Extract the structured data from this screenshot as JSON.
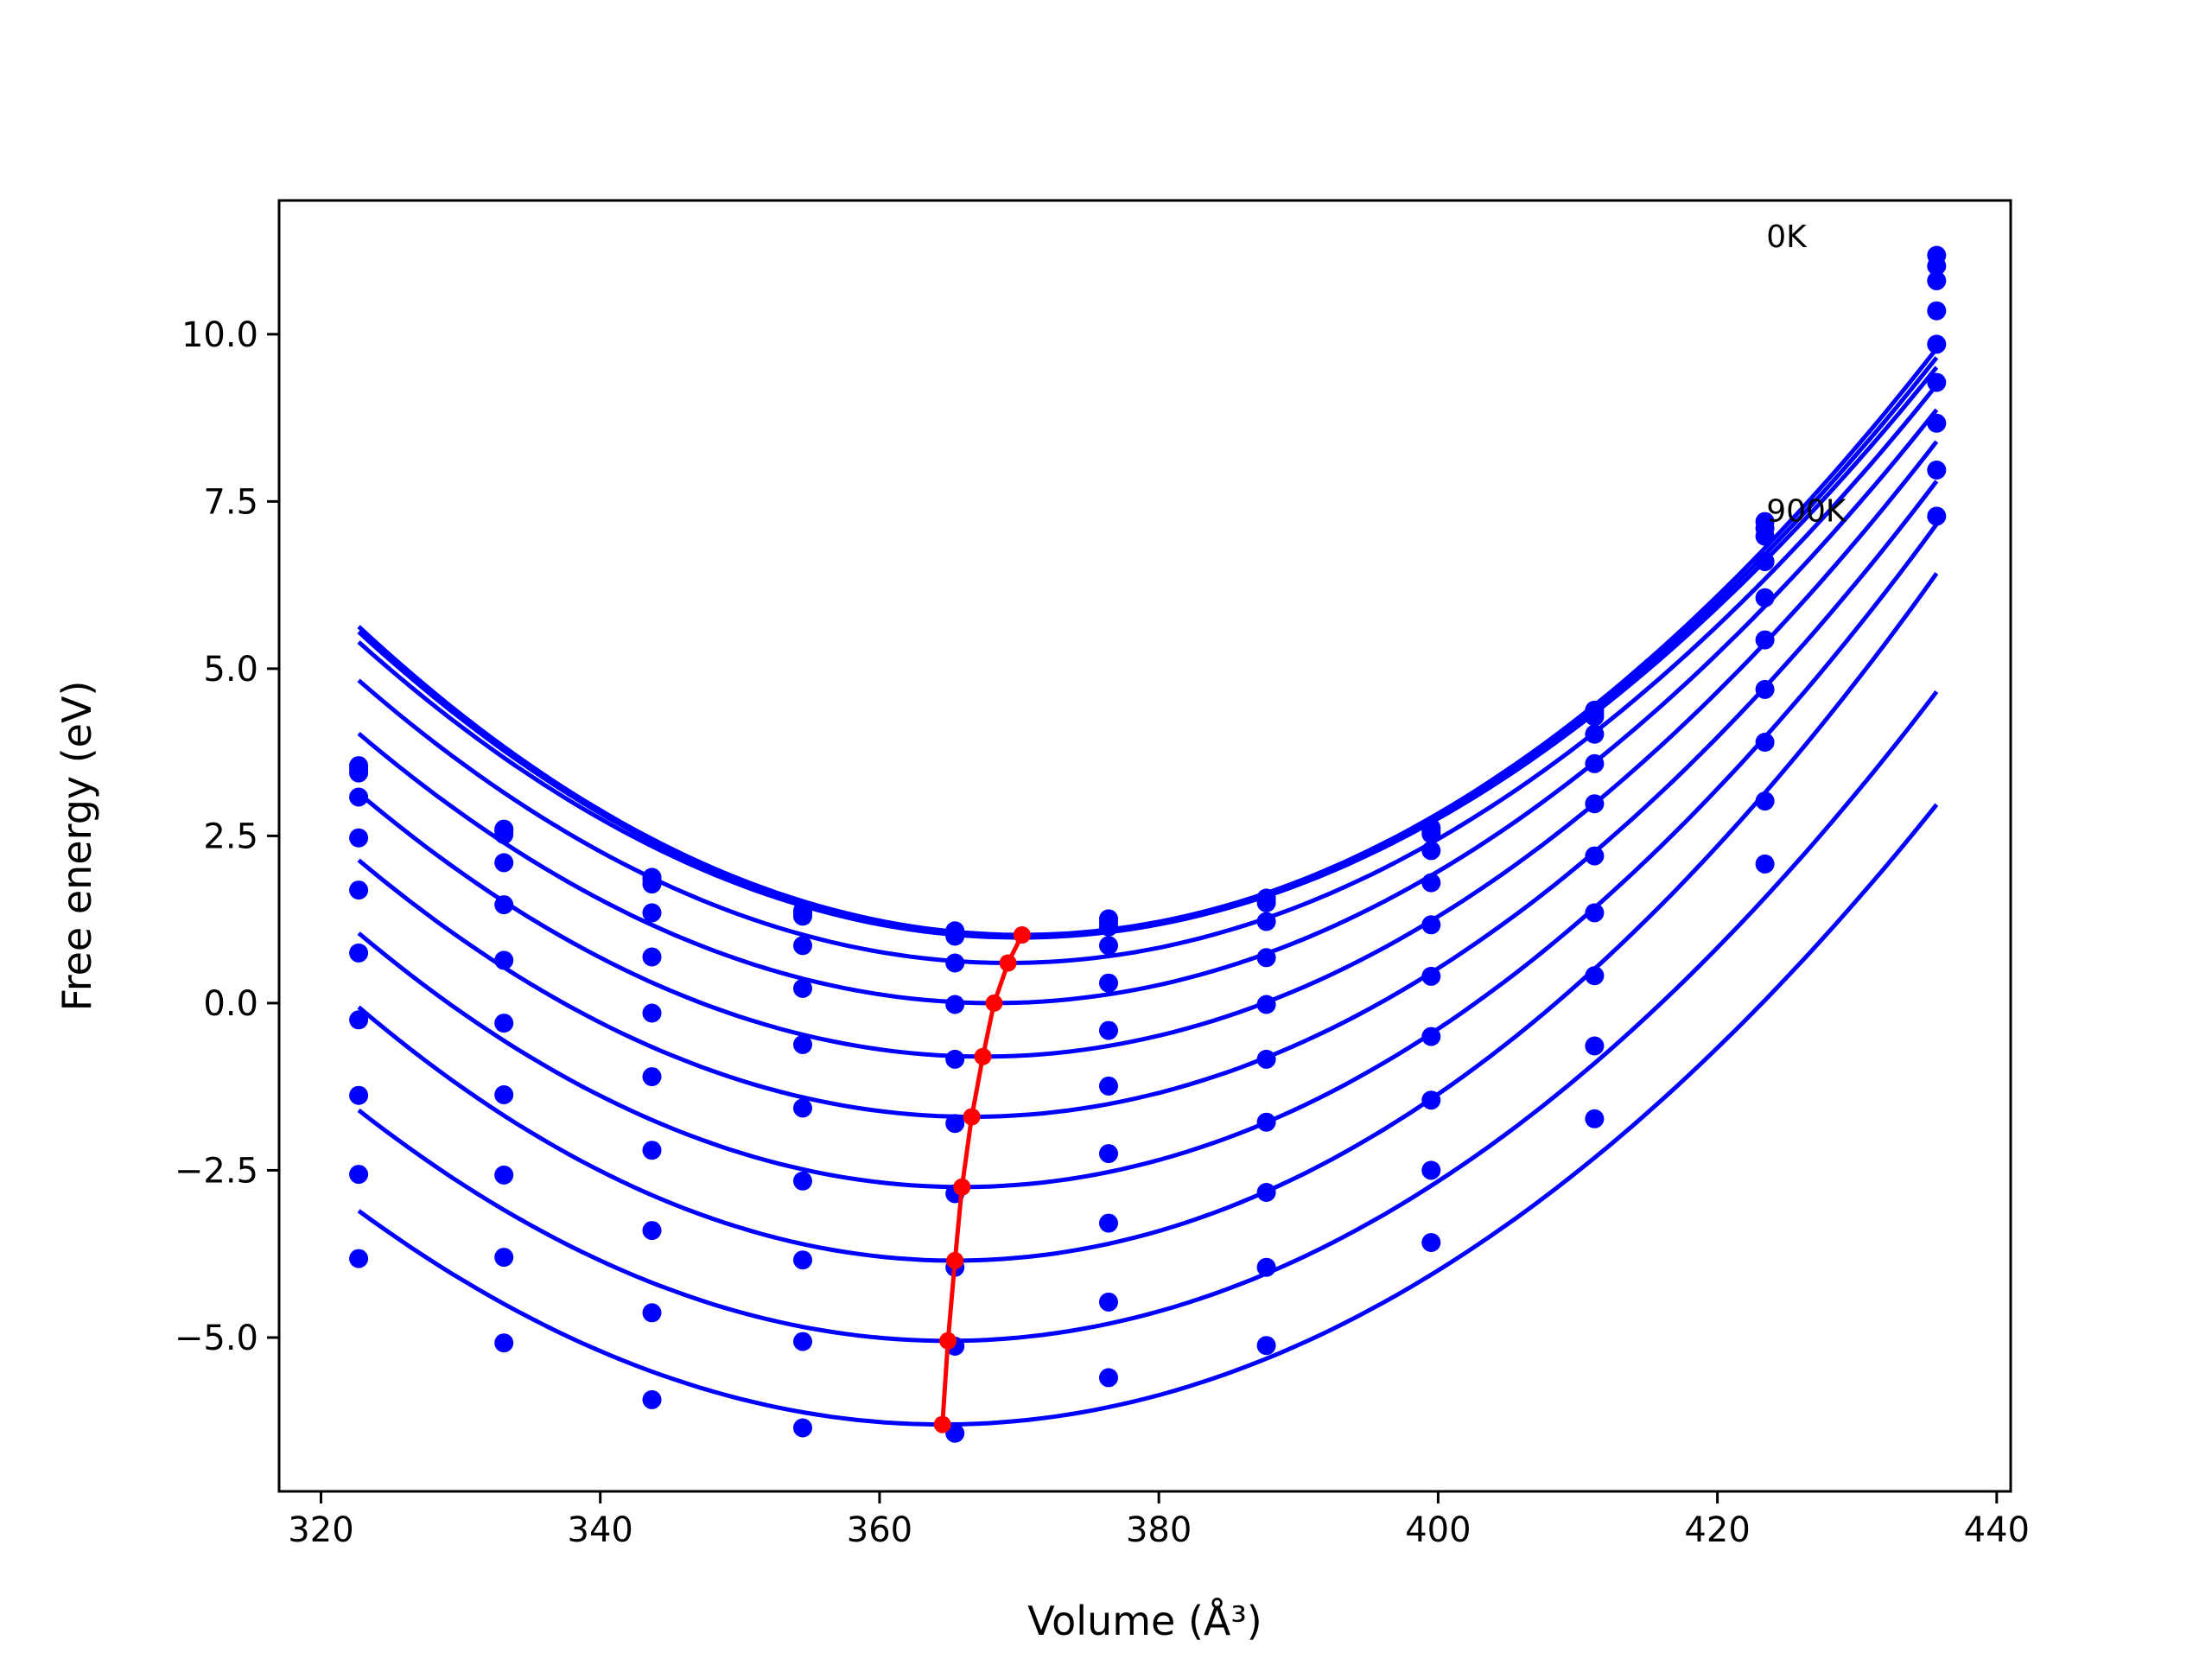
{
  "chart_data": {
    "type": "line",
    "xlabel": "Volume (Å³)",
    "ylabel": "Free energy (eV)",
    "xlim": [
      317,
      441
    ],
    "ylim": [
      -7.3,
      12.0
    ],
    "xticks": [
      320,
      340,
      360,
      380,
      400,
      420,
      440
    ],
    "yticks": [
      -5.0,
      -2.5,
      0.0,
      2.5,
      5.0,
      7.5,
      10.0
    ],
    "xtick_labels": [
      "320",
      "340",
      "360",
      "380",
      "400",
      "420",
      "440"
    ],
    "ytick_labels": [
      "−5.0",
      "−2.5",
      "0.0",
      "2.5",
      "5.0",
      "7.5",
      "10.0"
    ],
    "grid": false,
    "annotations": [
      {
        "text": "0K",
        "x": 423.5,
        "y": 11.3
      },
      {
        "text": "900K",
        "x": 423.5,
        "y": 7.2
      }
    ],
    "volumes": [
      322.7,
      333.1,
      343.7,
      354.5,
      365.4,
      376.4,
      387.7,
      399.5,
      411.2,
      423.4,
      435.7
    ],
    "series": [
      {
        "min_volume": 370.2,
        "min_energy": 1.02,
        "values": [
          3.55,
          2.6,
          1.88,
          1.38,
          1.08,
          1.26,
          1.57,
          2.62,
          4.38,
          7.2,
          11.18
        ]
      },
      {
        "min_volume": 370.2,
        "min_energy": 1.0,
        "values": [
          3.5,
          2.57,
          1.85,
          1.34,
          1.04,
          1.2,
          1.54,
          2.57,
          4.33,
          7.1,
          11.02
        ]
      },
      {
        "min_volume": 370.0,
        "min_energy": 0.98,
        "values": [
          3.44,
          2.52,
          1.78,
          1.3,
          1.0,
          1.14,
          1.5,
          2.53,
          4.28,
          6.98,
          10.8
        ]
      },
      {
        "min_volume": 369.2,
        "min_energy": 0.6,
        "values": [
          3.08,
          2.1,
          1.35,
          0.86,
          0.6,
          0.86,
          1.22,
          2.28,
          4.02,
          6.6,
          10.35
        ]
      },
      {
        "min_volume": 368.2,
        "min_energy": 0.0,
        "values": [
          2.47,
          1.47,
          0.69,
          0.22,
          -0.02,
          0.3,
          0.68,
          1.8,
          3.58,
          6.06,
          9.85
        ]
      },
      {
        "min_volume": 367.4,
        "min_energy": -0.8,
        "values": [
          1.69,
          0.64,
          -0.15,
          -0.62,
          -0.84,
          -0.41,
          -0.02,
          1.17,
          2.98,
          5.43,
          9.28
        ]
      },
      {
        "min_volume": 366.6,
        "min_energy": -1.7,
        "values": [
          0.75,
          -0.3,
          -1.1,
          -1.57,
          -1.8,
          -1.24,
          -0.84,
          0.4,
          2.2,
          4.69,
          8.67
        ]
      },
      {
        "min_volume": 365.9,
        "min_energy": -2.75,
        "values": [
          -0.25,
          -1.37,
          -2.2,
          -2.66,
          -2.85,
          -2.25,
          -1.78,
          -0.5,
          1.35,
          3.9,
          7.97
        ]
      },
      {
        "min_volume": 365.4,
        "min_energy": -3.85,
        "values": [
          -1.38,
          -2.57,
          -3.4,
          -3.84,
          -3.95,
          -3.29,
          -2.83,
          -1.45,
          0.41,
          3.02,
          7.28
        ]
      },
      {
        "min_volume": 364.9,
        "min_energy": -5.05,
        "values": [
          -2.56,
          -3.8,
          -4.63,
          -5.06,
          -5.13,
          -4.47,
          -3.95,
          -2.5,
          -0.64,
          2.08,
          null
        ]
      },
      {
        "min_volume": 364.5,
        "min_energy": -6.3,
        "values": [
          -3.82,
          -5.08,
          -5.93,
          -6.35,
          -6.43,
          -5.6,
          -5.12,
          -3.58,
          -1.73,
          null,
          null
        ]
      }
    ],
    "minimum_path": {
      "volumes": [
        370.2,
        369.2,
        368.2,
        367.4,
        366.6,
        365.9,
        365.4,
        364.9,
        364.5
      ],
      "energies": [
        1.02,
        0.6,
        0.0,
        -0.8,
        -1.7,
        -2.75,
        -3.85,
        -5.05,
        -6.3
      ]
    },
    "colors": {
      "fit": "#0000ff",
      "points": "#0000ff",
      "path": "#ff0000",
      "axes": "#000000"
    }
  }
}
